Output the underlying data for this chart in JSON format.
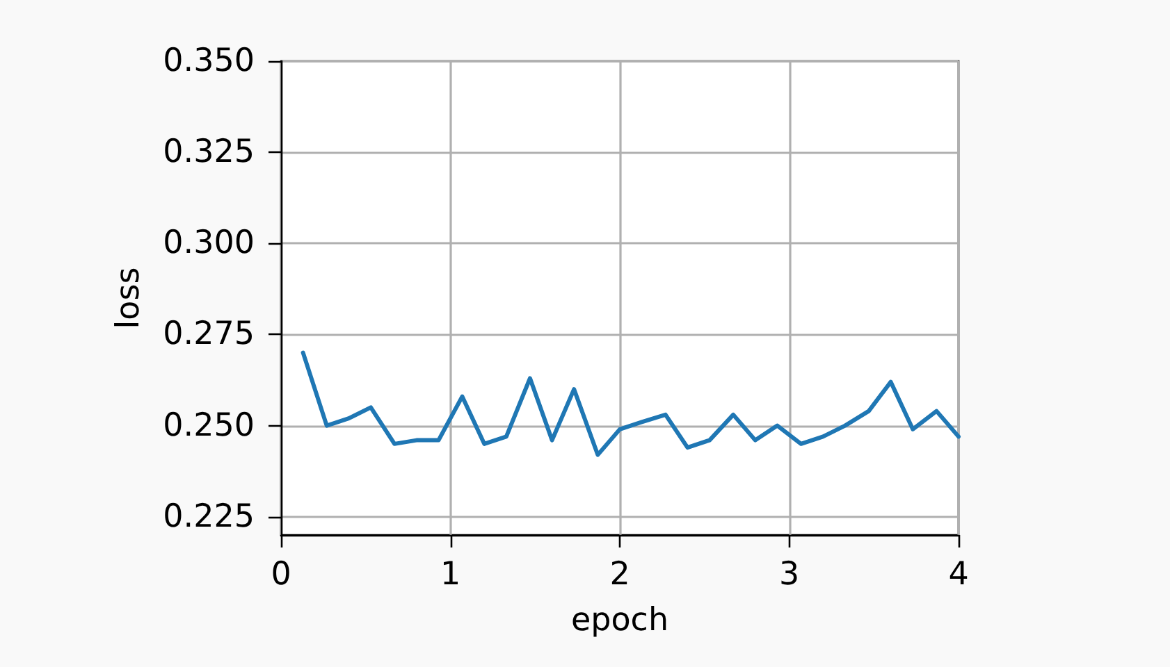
{
  "chart_data": {
    "type": "line",
    "xlabel": "epoch",
    "ylabel": "loss",
    "x": [
      0.13,
      0.27,
      0.4,
      0.53,
      0.67,
      0.8,
      0.93,
      1.07,
      1.2,
      1.33,
      1.47,
      1.6,
      1.73,
      1.87,
      2,
      2.13,
      2.27,
      2.4,
      2.53,
      2.67,
      2.8,
      2.93,
      3.07,
      3.2,
      3.33,
      3.47,
      3.6,
      3.73,
      3.87,
      4
    ],
    "series": [
      {
        "color": "#1f77b4",
        "values": [
          0.27,
          0.25,
          0.252,
          0.255,
          0.245,
          0.246,
          0.246,
          0.258,
          0.245,
          0.247,
          0.263,
          0.246,
          0.26,
          0.242,
          0.249,
          0.251,
          0.253,
          0.244,
          0.246,
          0.253,
          0.246,
          0.25,
          0.245,
          0.247,
          0.25,
          0.254,
          0.262,
          0.249,
          0.254,
          0.247
        ]
      }
    ],
    "xlim": [
      0,
      4
    ],
    "xticks": [
      0,
      1,
      2,
      3,
      4
    ],
    "ylim": [
      0.22,
      0.35
    ],
    "yticks": [
      {
        "value": 0.225,
        "label": "0.225"
      },
      {
        "value": 0.25,
        "label": "0.250"
      },
      {
        "value": 0.275,
        "label": "0.275"
      },
      {
        "value": 0.3,
        "label": "0.300"
      },
      {
        "value": 0.325,
        "label": "0.325"
      },
      {
        "value": 0.35,
        "label": "0.350"
      }
    ],
    "grid": true
  }
}
